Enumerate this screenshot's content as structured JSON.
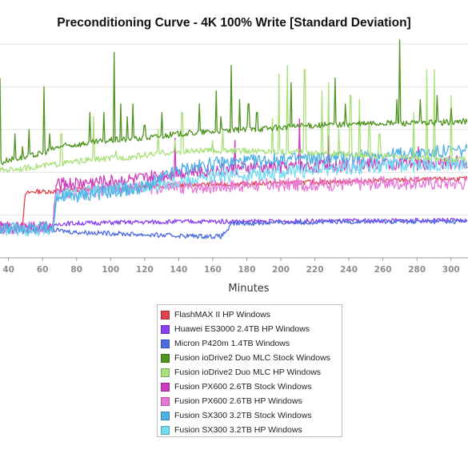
{
  "chart_data": {
    "type": "line",
    "title": "Preconditioning Curve - 4K 100% Write [Standard Deviation]",
    "xlabel": "Minutes",
    "ylabel": "",
    "xlim": [
      35,
      310
    ],
    "ylim": [
      0,
      100
    ],
    "x_ticks": [
      40,
      60,
      80,
      100,
      120,
      140,
      160,
      180,
      200,
      220,
      240,
      260,
      280,
      300
    ],
    "grid": true,
    "legend_position": "bottom",
    "series": [
      {
        "name": "FlashMAX II HP Windows",
        "color": "#e0434c",
        "x": [
          35,
          48,
          50,
          55,
          60,
          66,
          80,
          100,
          140,
          200,
          250,
          310
        ],
        "y": [
          13,
          14,
          30,
          31,
          31,
          31,
          32,
          33,
          34,
          35,
          36,
          37
        ]
      },
      {
        "name": "Huawei ES3000 2.4TB HP Windows",
        "color": "#8a3ff0",
        "x": [
          35,
          66,
          70,
          100,
          150,
          200,
          250,
          300,
          310
        ],
        "y": [
          14,
          14,
          16,
          16.5,
          17,
          17,
          17.3,
          17.5,
          17.5
        ]
      },
      {
        "name": "Micron P420m 1.4TB Windows",
        "color": "#4c6ce0",
        "x": [
          35,
          66,
          80,
          100,
          130,
          165,
          172,
          200,
          250,
          310
        ],
        "y": [
          13,
          13,
          12,
          11.5,
          10.5,
          10,
          16,
          16.5,
          17,
          17
        ]
      },
      {
        "name": "Fusion ioDrive2 Duo MLC Stock Windows",
        "color": "#4f931f",
        "x": [
          35,
          40,
          50,
          60,
          70,
          80,
          100,
          120,
          140,
          160,
          180,
          200,
          220,
          240,
          260,
          280,
          300,
          310
        ],
        "y": [
          44,
          46,
          47,
          49,
          52,
          53,
          55,
          56,
          58,
          59,
          60,
          61,
          62,
          62.5,
          63,
          63,
          63.5,
          64
        ],
        "spikes": [
          [
            35,
            84
          ],
          [
            44,
            58
          ],
          [
            48,
            52
          ],
          [
            52,
            60
          ],
          [
            61,
            80
          ],
          [
            64,
            58
          ],
          [
            88,
            68
          ],
          [
            96,
            68
          ],
          [
            102,
            96
          ],
          [
            106,
            72
          ],
          [
            110,
            66
          ],
          [
            113,
            72
          ],
          [
            120,
            62
          ],
          [
            130,
            68
          ],
          [
            152,
            72
          ],
          [
            162,
            78
          ],
          [
            165,
            66
          ],
          [
            171,
            90
          ],
          [
            176,
            74
          ],
          [
            181,
            72
          ],
          [
            186,
            68
          ],
          [
            206,
            82
          ],
          [
            232,
            84
          ],
          [
            238,
            72
          ],
          [
            268,
            74
          ],
          [
            270,
            102
          ],
          [
            282,
            74
          ],
          [
            292,
            76
          ],
          [
            300,
            70
          ]
        ]
      },
      {
        "name": "Fusion ioDrive2 Duo MLC HP Windows",
        "color": "#a9e07a",
        "x": [
          35,
          50,
          70,
          90,
          110,
          130,
          150,
          180,
          210,
          240,
          270,
          300,
          310
        ],
        "y": [
          41,
          42,
          44,
          46,
          47,
          49,
          50,
          50,
          49.5,
          48.5,
          47,
          46,
          46
        ],
        "spikes": [
          [
            71,
            58
          ],
          [
            90,
            66
          ],
          [
            103,
            50
          ],
          [
            128,
            60
          ],
          [
            138,
            55
          ],
          [
            142,
            68
          ],
          [
            160,
            55
          ],
          [
            166,
            60
          ],
          [
            195,
            65
          ],
          [
            199,
            86
          ],
          [
            204,
            90
          ],
          [
            214,
            88
          ],
          [
            224,
            78
          ],
          [
            228,
            82
          ],
          [
            234,
            60
          ],
          [
            241,
            76
          ],
          [
            246,
            74
          ],
          [
            252,
            62
          ],
          [
            258,
            58
          ],
          [
            278,
            68
          ],
          [
            286,
            88
          ],
          [
            290,
            88
          ],
          [
            300,
            76
          ]
        ]
      },
      {
        "name": "Fusion PX600 2.6TB Stock Windows",
        "color": "#cc3dbb",
        "x": [
          35,
          66,
          68,
          80,
          100,
          120,
          140,
          160,
          180,
          200,
          220,
          240,
          260,
          280,
          300,
          310
        ],
        "y": [
          14,
          14,
          34,
          35,
          36,
          37,
          40,
          41,
          42,
          42.5,
          43,
          43.5,
          44,
          44,
          44.5,
          45
        ],
        "spikes": [
          [
            138,
            56
          ],
          [
            173,
            55
          ],
          [
            211,
            65
          ],
          [
            228,
            57
          ],
          [
            281,
            52
          ]
        ]
      },
      {
        "name": "Fusion PX600 2.6TB HP Windows",
        "color": "#e777d7",
        "x": [
          35,
          66,
          68,
          80,
          100,
          120,
          140,
          160,
          180,
          200,
          220,
          240,
          260,
          280,
          300,
          310
        ],
        "y": [
          14,
          14,
          30,
          31,
          32,
          32.5,
          33,
          33.5,
          34,
          34,
          34.5,
          34.5,
          35,
          35,
          35,
          35
        ]
      },
      {
        "name": "Fusion SX300 3.2TB Stock Windows",
        "color": "#4fb0e6",
        "x": [
          35,
          66,
          68,
          80,
          100,
          120,
          140,
          160,
          180,
          200,
          220,
          240,
          260,
          280,
          300,
          310
        ],
        "y": [
          14,
          14,
          28,
          29,
          31,
          33,
          41,
          44,
          45,
          46,
          46.5,
          47,
          48,
          49,
          50,
          50
        ]
      },
      {
        "name": "Fusion SX300 3.2TB HP Windows",
        "color": "#74dcf2",
        "x": [
          35,
          66,
          68,
          80,
          100,
          120,
          140,
          160,
          180,
          200,
          220,
          240,
          260,
          280,
          300,
          310
        ],
        "y": [
          13,
          13,
          29,
          30,
          32,
          33,
          36,
          38,
          39,
          40,
          41,
          42,
          43,
          43.5,
          44,
          44
        ]
      }
    ]
  }
}
